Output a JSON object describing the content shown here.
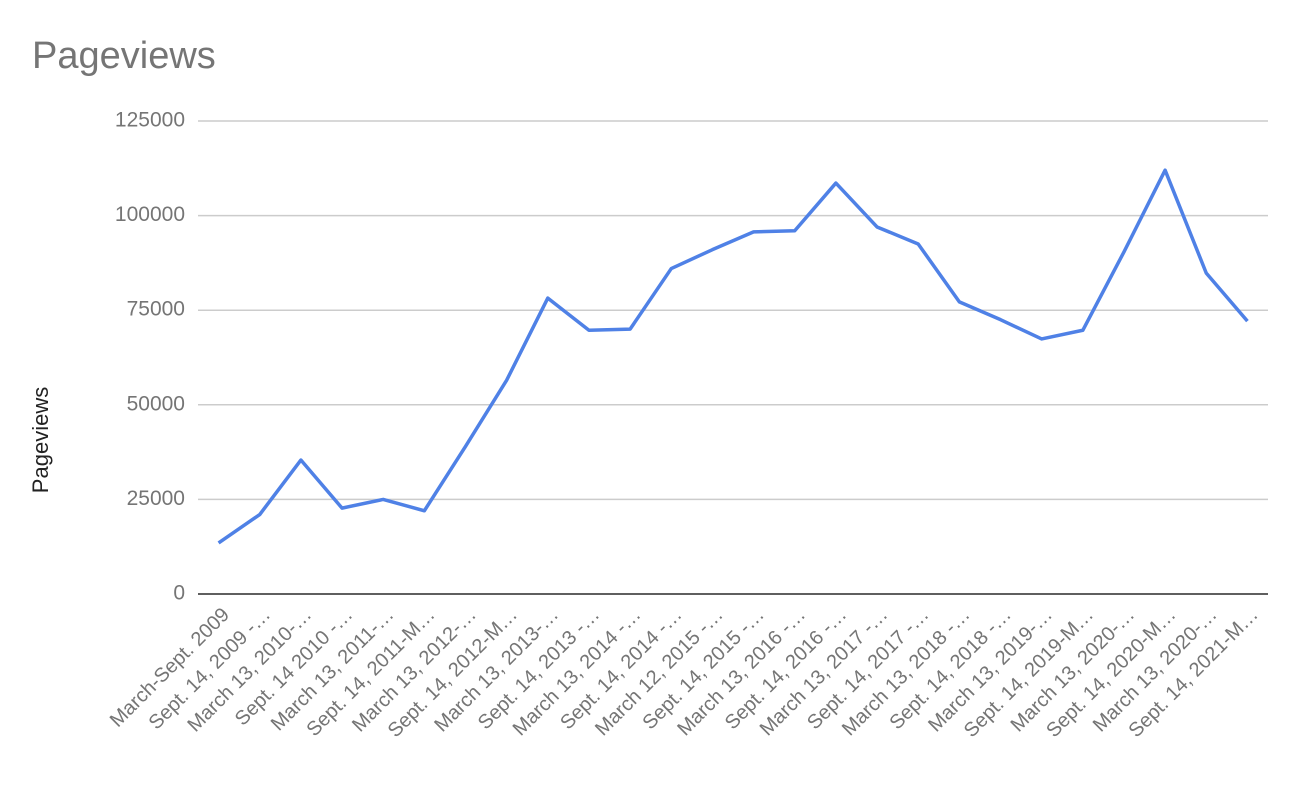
{
  "chart_data": {
    "type": "line",
    "title": "Pageviews",
    "y_label": "Pageviews",
    "categories": [
      "March-Sept. 2009",
      "Sept. 14, 2009 -…",
      "March 13, 2010-…",
      "Sept. 14 2010 -…",
      "March 13, 2011-…",
      "Sept. 14, 2011-M…",
      "March 13, 2012-…",
      "Sept. 14, 2012-M…",
      "March 13, 2013-…",
      "Sept. 14, 2013 -…",
      "March 13, 2014 -…",
      "Sept. 14, 2014 -…",
      "March 12, 2015 -…",
      "Sept. 14, 2015 -…",
      "March 13, 2016 -…",
      "Sept. 14, 2016 -…",
      "March 13, 2017 -…",
      "Sept. 14, 2017 -…",
      "March 13, 2018 -…",
      "Sept. 14, 2018 -…",
      "March 13, 2019-…",
      "Sept. 14, 2019-M…",
      "March 13, 2020-…",
      "Sept. 14, 2020-M…",
      "March 13, 2020-…",
      "Sept. 14, 2021-M…"
    ],
    "series": [
      {
        "name": "Pageviews",
        "color": "#4f81e6",
        "values": [
          13500,
          21000,
          35400,
          22700,
          25000,
          22000,
          39000,
          56500,
          78200,
          69700,
          70000,
          86000,
          91000,
          95700,
          96000,
          108600,
          97000,
          92500,
          77200,
          72500,
          67400,
          69700,
          90400,
          112000,
          84800,
          72100
        ]
      }
    ],
    "ylim": [
      0,
      125000
    ],
    "yticks": [
      0,
      25000,
      50000,
      75000,
      100000,
      125000
    ],
    "grid": true
  }
}
